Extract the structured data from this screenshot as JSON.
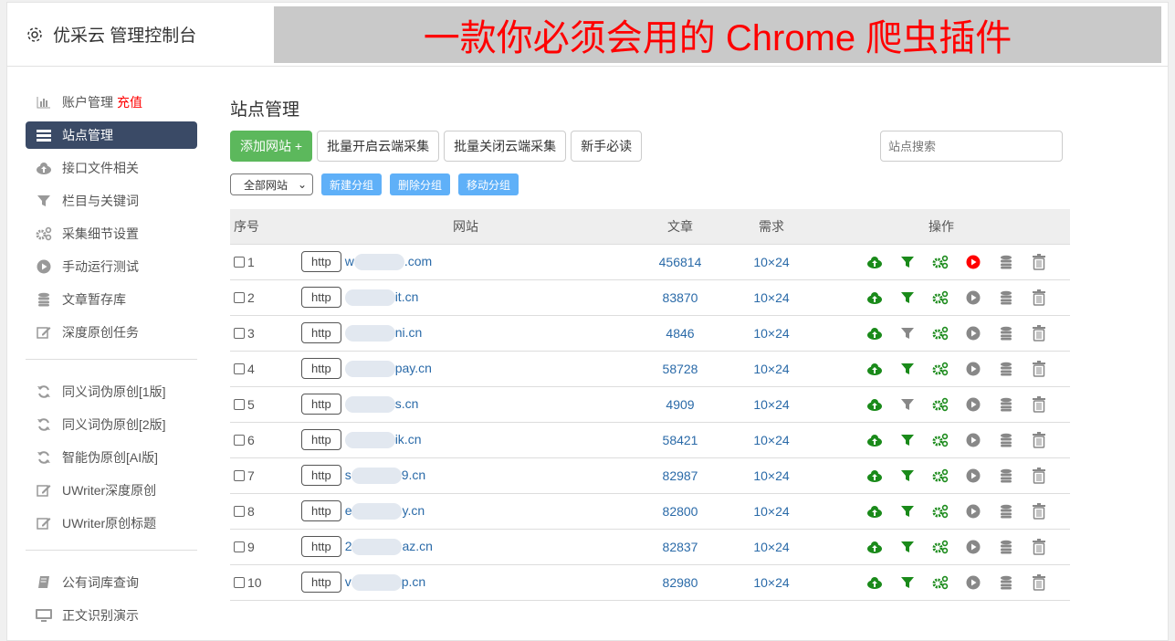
{
  "header": {
    "title": "优采云 管理控制台",
    "icon": "gear-icon"
  },
  "sidebar": {
    "group1": [
      {
        "label": "账户管理",
        "badge": "充值",
        "icon": "bar-chart-icon"
      },
      {
        "label": "站点管理",
        "icon": "list-icon",
        "active": true
      },
      {
        "label": "接口文件相关",
        "icon": "cloud-upload-icon"
      },
      {
        "label": "栏目与关键词",
        "icon": "filter-icon"
      },
      {
        "label": "采集细节设置",
        "icon": "gears-icon"
      },
      {
        "label": "手动运行测试",
        "icon": "play-icon"
      },
      {
        "label": "文章暂存库",
        "icon": "database-icon"
      },
      {
        "label": "深度原创任务",
        "icon": "edit-icon"
      }
    ],
    "group2": [
      {
        "label": "同义词伪原创[1版]",
        "icon": "refresh-icon"
      },
      {
        "label": "同义词伪原创[2版]",
        "icon": "refresh-icon"
      },
      {
        "label": "智能伪原创[AI版]",
        "icon": "refresh-icon"
      },
      {
        "label": "UWriter深度原创",
        "icon": "edit-icon"
      },
      {
        "label": "UWriter原创标题",
        "icon": "edit-icon"
      }
    ],
    "group3": [
      {
        "label": "公有词库查询",
        "icon": "book-icon"
      },
      {
        "label": "正文识别演示",
        "icon": "monitor-icon"
      }
    ]
  },
  "main": {
    "title": "站点管理",
    "buttons": {
      "add": "添加网站 +",
      "enable": "批量开启云端采集",
      "disable": "批量关闭云端采集",
      "guide": "新手必读"
    },
    "search_placeholder": "站点搜索",
    "filter": "全部网站",
    "group_buttons": {
      "new": "新建分组",
      "delete": "删除分组",
      "move": "移动分组"
    },
    "columns": {
      "no": "序号",
      "site": "网站",
      "articles": "文章",
      "demand": "需求",
      "ops": "操作"
    },
    "rows": [
      {
        "no": "1",
        "protocol": "http",
        "pre": "w",
        "suf": ".com",
        "articles": "456814",
        "demand": "10×24",
        "filter_on": true,
        "play_active": true
      },
      {
        "no": "2",
        "protocol": "http",
        "pre": "",
        "suf": "it.cn",
        "articles": "83870",
        "demand": "10×24",
        "filter_on": true,
        "play_active": false
      },
      {
        "no": "3",
        "protocol": "http",
        "pre": "",
        "suf": "ni.cn",
        "articles": "4846",
        "demand": "10×24",
        "filter_on": false,
        "play_active": false
      },
      {
        "no": "4",
        "protocol": "http",
        "pre": "",
        "suf": "pay.cn",
        "articles": "58728",
        "demand": "10×24",
        "filter_on": true,
        "play_active": false
      },
      {
        "no": "5",
        "protocol": "http",
        "pre": "",
        "suf": "s.cn",
        "articles": "4909",
        "demand": "10×24",
        "filter_on": false,
        "play_active": false
      },
      {
        "no": "6",
        "protocol": "http",
        "pre": "",
        "suf": "ik.cn",
        "articles": "58421",
        "demand": "10×24",
        "filter_on": true,
        "play_active": false
      },
      {
        "no": "7",
        "protocol": "http",
        "pre": "s",
        "suf": "9.cn",
        "articles": "82987",
        "demand": "10×24",
        "filter_on": true,
        "play_active": false
      },
      {
        "no": "8",
        "protocol": "http",
        "pre": "e",
        "suf": "y.cn",
        "articles": "82800",
        "demand": "10×24",
        "filter_on": true,
        "play_active": false
      },
      {
        "no": "9",
        "protocol": "http",
        "pre": "2",
        "suf": "az.cn",
        "articles": "82837",
        "demand": "10×24",
        "filter_on": true,
        "play_active": false
      },
      {
        "no": "10",
        "protocol": "http",
        "pre": "v",
        "suf": "p.cn",
        "articles": "82980",
        "demand": "10×24",
        "filter_on": true,
        "play_active": false
      }
    ]
  },
  "overlay": {
    "text": "一款你必须会用的 Chrome 爬虫插件"
  },
  "colors": {
    "green": "#5cb85c",
    "icon_green": "#1a8a1a",
    "blue_btn": "#5fb0f8",
    "active_nav": "#3a4a66",
    "red": "#ff0000"
  }
}
